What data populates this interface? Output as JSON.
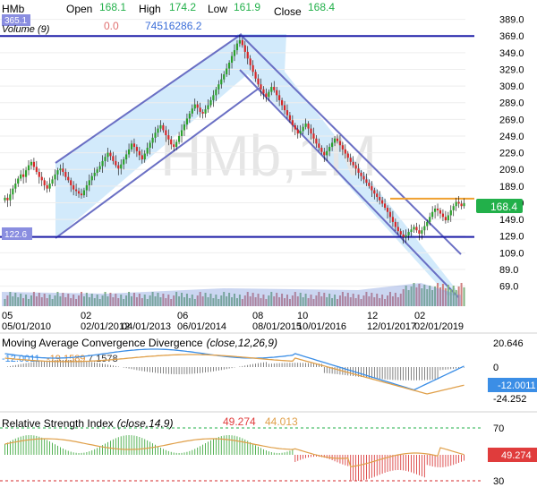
{
  "header": {
    "symbol": "HMb",
    "open_label": "Open",
    "open_value": "168.1",
    "high_label": "High",
    "high_value": "174.2",
    "low_label": "Low",
    "low_value": "161.9",
    "close_label": "Close",
    "close_value": "168.4",
    "watermark": "HMb,1M",
    "top_left_value": "365.1",
    "volume_label": "Volume (9)",
    "volume_value1": "0.0",
    "volume_value2": "74516286.2",
    "price_flag": "168.4",
    "channel_low_flag": "122.6"
  },
  "colors": {
    "up": "#2ca02c",
    "down": "#d62728",
    "channel_fill": "#cde8fb",
    "channel_line": "#6a6fc4",
    "hline": "#1f1fa8",
    "accent_green": "#22b04a",
    "accent_blue": "#3b8ee6",
    "accent_red": "#e03c3c"
  },
  "chart_data": [
    {
      "type": "candlestick",
      "y_ticks": [
        "389.0",
        "369.0",
        "349.0",
        "329.0",
        "309.0",
        "289.0",
        "269.0",
        "249.0",
        "229.0",
        "209.0",
        "189.0",
        "169.0",
        "149.0",
        "129.0",
        "109.0",
        "89.0",
        "69.0"
      ],
      "ylim": [
        60,
        395
      ],
      "x_ticks": [
        {
          "top": "05",
          "bottom": "05/01/2010"
        },
        {
          "top": "02",
          "bottom": "02/01/2012"
        },
        {
          "top": "",
          "bottom": "04/01/2013"
        },
        {
          "top": "06",
          "bottom": "06/01/2014"
        },
        {
          "top": "08",
          "bottom": "08/01/2015"
        },
        {
          "top": "10",
          "bottom": "10/01/2016"
        },
        {
          "top": "12",
          "bottom": "12/01/2017"
        },
        {
          "top": "02",
          "bottom": "02/01/2019"
        }
      ],
      "horizontal_lines": [
        369,
        128
      ],
      "resistance_line": 174,
      "last_price": 168.4,
      "closes": [
        175,
        172,
        179,
        186,
        192,
        198,
        203,
        200,
        208,
        214,
        218,
        212,
        206,
        200,
        196,
        190,
        186,
        192,
        197,
        203,
        208,
        210,
        206,
        200,
        196,
        190,
        185,
        183,
        180,
        178,
        184,
        190,
        196,
        201,
        205,
        209,
        213,
        219,
        224,
        229,
        225,
        219,
        214,
        210,
        215,
        221,
        227,
        233,
        240,
        236,
        231,
        226,
        221,
        228,
        235,
        241,
        247,
        253,
        258,
        262,
        256,
        250,
        245,
        239,
        236,
        242,
        249,
        256,
        263,
        270,
        276,
        282,
        287,
        283,
        278,
        276,
        281,
        286,
        292,
        298,
        305,
        311,
        317,
        323,
        330,
        337,
        345,
        352,
        360,
        364,
        358,
        350,
        342,
        334,
        326,
        318,
        311,
        305,
        300,
        296,
        302,
        308,
        304,
        298,
        292,
        286,
        280,
        274,
        268,
        262,
        257,
        252,
        255,
        260,
        264,
        258,
        252,
        246,
        240,
        235,
        230,
        226,
        231,
        236,
        241,
        246,
        243,
        238,
        233,
        228,
        223,
        218,
        214,
        210,
        205,
        201,
        197,
        193,
        189,
        184,
        180,
        176,
        172,
        168,
        163,
        158,
        152,
        146,
        140,
        135,
        131,
        128,
        130,
        134,
        137,
        140,
        136,
        132,
        136,
        141,
        146,
        152,
        158,
        162,
        160,
        156,
        152,
        148,
        154,
        160,
        165,
        170,
        168,
        165,
        168.4
      ]
    },
    {
      "type": "bar",
      "title": "Volume (9)",
      "values_note": "relative heights"
    },
    {
      "type": "line",
      "title": "Moving Average Convergence Divergence",
      "params": "(close,12,26,9)",
      "labels": {
        "macd": "-12.0011",
        "signal": "-19.1589",
        "hist": "7.1578"
      },
      "y_ticks": [
        "20.646",
        "0",
        "-24.252"
      ],
      "value_flag": "-12.0011"
    },
    {
      "type": "line",
      "title": "Relative Strength Index",
      "params": "(close,14,9)",
      "labels": {
        "rsi": "49.274",
        "signal": "44.013"
      },
      "y_ticks": [
        "70",
        "30"
      ],
      "value_flag": "49.274"
    }
  ]
}
